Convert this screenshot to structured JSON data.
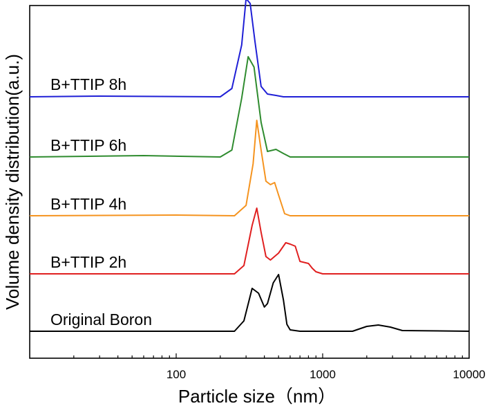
{
  "chart_data": {
    "type": "line",
    "title": "",
    "xlabel": "Particle size（nm）",
    "ylabel": "Volume density distribution(a.u.)",
    "x_scale": "log",
    "xlim": [
      10,
      10000
    ],
    "x_ticks": [
      100,
      1000,
      10000
    ],
    "x_tick_labels": [
      "100",
      "1000",
      "10000"
    ],
    "y_ticks_shown": false,
    "grid": false,
    "legend": "none",
    "stacked_offset": true,
    "series": [
      {
        "name": "Original Boron",
        "color": "#000000",
        "x": [
          10,
          250,
          290,
          330,
          365,
          400,
          420,
          460,
          500,
          540,
          570,
          600,
          700,
          1600,
          2000,
          2400,
          2900,
          3500,
          10000
        ],
        "y": [
          0,
          0,
          0.15,
          0.62,
          0.55,
          0.35,
          0.4,
          0.7,
          0.82,
          0.45,
          0.1,
          0.02,
          0,
          0,
          0.07,
          0.09,
          0.06,
          0.01,
          0
        ]
      },
      {
        "name": "B+TTIP 2h",
        "color": "#e01f1f",
        "x": [
          10,
          250,
          290,
          330,
          355,
          380,
          410,
          440,
          500,
          560,
          600,
          650,
          700,
          800,
          850,
          900,
          1000,
          10000
        ],
        "y": [
          0,
          0,
          0.12,
          0.7,
          0.95,
          0.6,
          0.25,
          0.2,
          0.3,
          0.45,
          0.43,
          0.4,
          0.18,
          0.15,
          0.08,
          0.03,
          0,
          0
        ]
      },
      {
        "name": "B+TTIP 4h",
        "color": "#f5931e",
        "x": [
          10,
          100,
          250,
          300,
          335,
          355,
          380,
          410,
          440,
          470,
          500,
          550,
          600,
          10000
        ],
        "y": [
          0,
          0.01,
          0,
          0.15,
          0.75,
          1.38,
          0.95,
          0.5,
          0.45,
          0.48,
          0.3,
          0.03,
          0,
          0
        ]
      },
      {
        "name": "B+TTIP 6h",
        "color": "#2e8b2e",
        "x": [
          10,
          60,
          200,
          240,
          280,
          310,
          340,
          380,
          420,
          480,
          540,
          600,
          10000
        ],
        "y": [
          0,
          0.02,
          0,
          0.1,
          0.85,
          1.45,
          1.3,
          0.5,
          0.08,
          0.11,
          0.05,
          0,
          0
        ]
      },
      {
        "name": "B+TTIP 8h",
        "color": "#1f1fd6",
        "x": [
          10,
          30,
          200,
          240,
          280,
          300,
          320,
          345,
          380,
          420,
          480,
          540,
          600,
          10000
        ],
        "y": [
          0,
          0.01,
          0,
          0.12,
          0.75,
          1.42,
          1.35,
          0.8,
          0.15,
          0.04,
          0.02,
          0,
          0,
          0
        ]
      }
    ]
  }
}
